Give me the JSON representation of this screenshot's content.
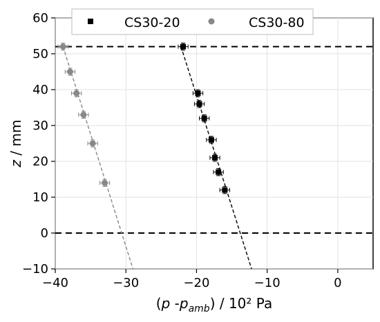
{
  "chart_data": {
    "type": "scatter",
    "xlabel": {
      "open": "(",
      "p": "p",
      "sep": " -",
      "pamb_p": "p",
      "pamb_sub": "amb",
      "close": ")",
      "unit": " / 10² Pa"
    },
    "ylabel": {
      "z": "z",
      "unit": " / mm"
    },
    "xlim": [
      -40,
      5
    ],
    "ylim": [
      -10,
      60
    ],
    "xticks": [
      -40,
      -30,
      -20,
      -10,
      0
    ],
    "yticks": [
      -10,
      0,
      10,
      20,
      30,
      40,
      50,
      60
    ],
    "xtick_labels": [
      "−40",
      "−30",
      "−20",
      "−10",
      "0"
    ],
    "ytick_labels": [
      "−10",
      "0",
      "10",
      "20",
      "30",
      "40",
      "50",
      "60"
    ],
    "legend_position": "top",
    "series": [
      {
        "name": "CS30-20",
        "marker": "square",
        "color": "#000000",
        "points": [
          {
            "x": -21.9,
            "y": 52
          },
          {
            "x": -19.8,
            "y": 39
          },
          {
            "x": -19.6,
            "y": 36
          },
          {
            "x": -18.9,
            "y": 32
          },
          {
            "x": -17.9,
            "y": 26
          },
          {
            "x": -17.4,
            "y": 21
          },
          {
            "x": -16.9,
            "y": 17
          },
          {
            "x": -16.0,
            "y": 12
          }
        ],
        "fit": {
          "x1": -22.2,
          "y1": 52,
          "x2": -12.2,
          "y2": -10
        }
      },
      {
        "name": "CS30-80",
        "marker": "circle",
        "color": "#888888",
        "points": [
          {
            "x": -38.9,
            "y": 52
          },
          {
            "x": -37.9,
            "y": 45
          },
          {
            "x": -37.0,
            "y": 39
          },
          {
            "x": -36.0,
            "y": 33
          },
          {
            "x": -34.7,
            "y": 25
          },
          {
            "x": -33.0,
            "y": 14
          }
        ],
        "fit": {
          "x1": -38.9,
          "y1": 52,
          "x2": -29.0,
          "y2": -10
        }
      }
    ],
    "reference_lines": [
      {
        "y": 52,
        "style": "dashed",
        "color": "#000000"
      },
      {
        "y": 0,
        "style": "dashed",
        "color": "#000000"
      }
    ],
    "x_error": 0.7,
    "y_error": 1.0
  }
}
